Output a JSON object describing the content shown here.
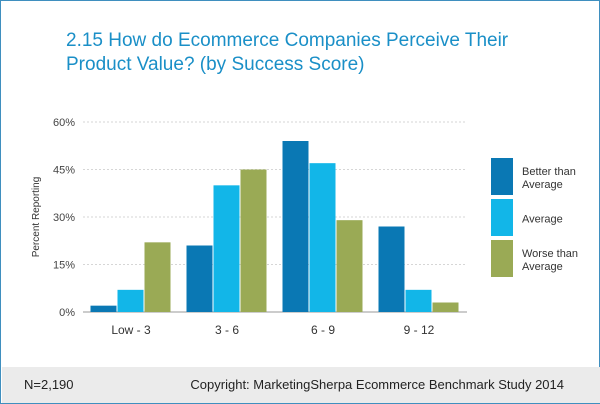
{
  "title_line1": "2.15 How do Ecommerce Companies Perceive Their",
  "title_line2": "Product Value? (by Success Score)",
  "footer": {
    "n": "N=2,190",
    "copyright": "Copyright: MarketingSherpa Ecommerce Benchmark Study 2014"
  },
  "chart_data": {
    "type": "bar",
    "ylabel": "Percent Reporting",
    "xlabel": "",
    "ylim": [
      0,
      60
    ],
    "yticks": [
      "0%",
      "15%",
      "30%",
      "45%",
      "60%"
    ],
    "ytick_values": [
      0,
      15,
      30,
      45,
      60
    ],
    "categories": [
      "Low - 3",
      "3 - 6",
      "6 - 9",
      "9 - 12"
    ],
    "series": [
      {
        "name": "Better than Average",
        "name_lines": [
          "Better than",
          "Average"
        ],
        "color": "#0a78b4",
        "values": [
          2,
          21,
          54,
          27
        ]
      },
      {
        "name": "Average",
        "name_lines": [
          "Average"
        ],
        "color": "#12b6e8",
        "values": [
          7,
          40,
          47,
          7
        ]
      },
      {
        "name": "Worse than Average",
        "name_lines": [
          "Worse than",
          "Average"
        ],
        "color": "#9aaa55",
        "values": [
          22,
          45,
          29,
          3
        ]
      }
    ],
    "grid": true,
    "legend": "right"
  }
}
